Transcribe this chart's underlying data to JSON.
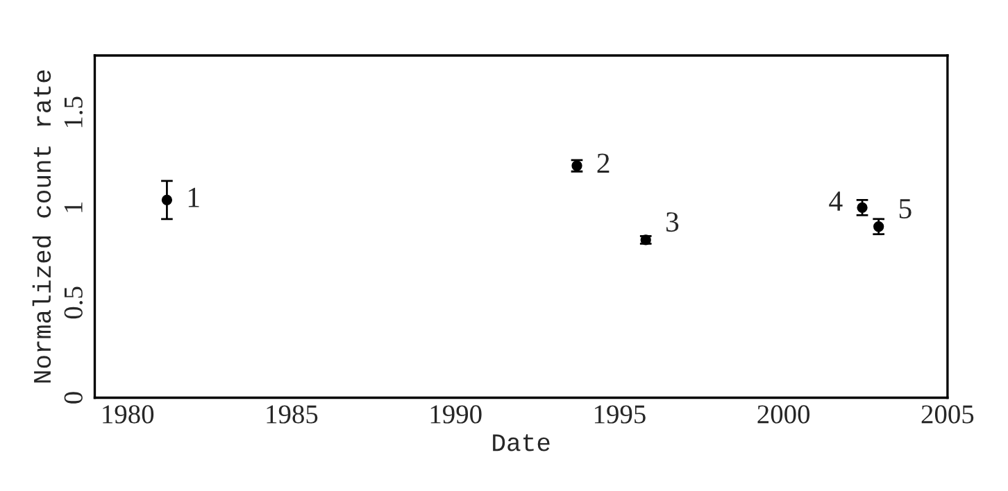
{
  "chart_data": {
    "type": "scatter",
    "xlabel": "Date",
    "ylabel": "Normalized count rate",
    "x": [
      1981.2,
      1993.7,
      1995.8,
      2002.4,
      2002.9
    ],
    "series": [
      {
        "color": "#000000",
        "values": [
          1.04,
          1.22,
          0.83,
          1.0,
          0.9
        ],
        "errors": [
          0.1,
          0.03,
          0.02,
          0.04,
          0.04
        ]
      }
    ],
    "xlim": [
      1979,
      2005
    ],
    "xticks": [
      1980,
      1985,
      1990,
      1995,
      2000,
      2005
    ],
    "ylim": [
      0,
      1.8
    ],
    "yticks": [
      0,
      0.5,
      1,
      1.5
    ],
    "marker": "circle",
    "grid": false,
    "annotations": [
      {
        "text": "1",
        "x": 1981.2,
        "y": 1.04
      },
      {
        "text": "2",
        "x": 1993.7,
        "y": 1.22
      },
      {
        "text": "3",
        "x": 1995.8,
        "y": 0.83
      },
      {
        "text": "4",
        "x": 2002.4,
        "y": 1.0
      },
      {
        "text": "5",
        "x": 2002.9,
        "y": 0.9
      }
    ]
  }
}
